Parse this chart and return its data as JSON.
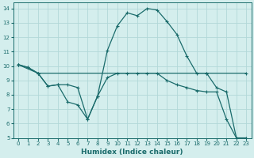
{
  "xlabel": "Humidex (Indice chaleur)",
  "bg_color": "#d4eeed",
  "grid_color": "#b2d8d8",
  "line_color": "#1a6b6b",
  "xlim": [
    -0.5,
    23.5
  ],
  "ylim": [
    5,
    14.4
  ],
  "xticks": [
    0,
    1,
    2,
    3,
    4,
    5,
    6,
    7,
    8,
    9,
    10,
    11,
    12,
    13,
    14,
    15,
    16,
    17,
    18,
    19,
    20,
    21,
    22,
    23
  ],
  "yticks": [
    5,
    6,
    7,
    8,
    9,
    10,
    11,
    12,
    13,
    14
  ],
  "line1_x": [
    0,
    1,
    2,
    19,
    23
  ],
  "line1_y": [
    10.1,
    9.9,
    9.5,
    9.5,
    9.5
  ],
  "line2_x": [
    0,
    1,
    2,
    3,
    4,
    5,
    6,
    7,
    8,
    9,
    10,
    11,
    12,
    13,
    14,
    15,
    16,
    17,
    18,
    19,
    20,
    21,
    22,
    23
  ],
  "line2_y": [
    10.1,
    9.9,
    9.5,
    8.6,
    8.7,
    8.7,
    8.5,
    6.3,
    7.9,
    11.1,
    12.8,
    13.7,
    13.5,
    14.0,
    13.9,
    13.1,
    12.2,
    10.7,
    9.5,
    9.5,
    8.5,
    8.2,
    5.0,
    5.0
  ],
  "line3_x": [
    0,
    2,
    3,
    4,
    5,
    6,
    7,
    8,
    9,
    10,
    11,
    12,
    13,
    14,
    15,
    16,
    17,
    18,
    19,
    20,
    21,
    22,
    23
  ],
  "line3_y": [
    10.1,
    9.5,
    8.6,
    8.7,
    7.5,
    7.3,
    6.3,
    7.9,
    9.2,
    9.5,
    9.5,
    9.5,
    9.5,
    9.5,
    9.0,
    8.7,
    8.5,
    8.3,
    8.2,
    8.2,
    6.3,
    5.0,
    5.0
  ]
}
